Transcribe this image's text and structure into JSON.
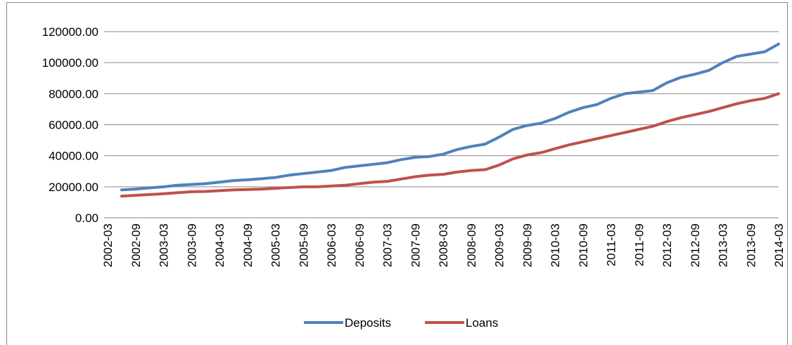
{
  "chart_data": {
    "type": "line",
    "categories": [
      "2002-03",
      null,
      "2002-09",
      null,
      "2003-03",
      null,
      "2003-09",
      null,
      "2004-03",
      null,
      "2004-09",
      null,
      "2005-03",
      null,
      "2005-09",
      null,
      "2006-03",
      null,
      "2006-09",
      null,
      "2007-03",
      null,
      "2007-09",
      null,
      "2008-03",
      null,
      "2008-09",
      null,
      "2009-03",
      null,
      "2009-09",
      null,
      "2010-03",
      null,
      "2010-09",
      null,
      "2011-03",
      null,
      "2011-09",
      null,
      "2012-03",
      null,
      "2012-09",
      null,
      "2013-03",
      null,
      "2013-09",
      null,
      "2014-03"
    ],
    "series": [
      {
        "name": "Deposits",
        "color": "#4f81bd",
        "values": [
          null,
          18000,
          18500,
          19300,
          20000,
          21000,
          21500,
          22000,
          23000,
          24000,
          24500,
          25200,
          26000,
          27500,
          28500,
          29500,
          30500,
          32500,
          33500,
          34500,
          35500,
          37500,
          39000,
          39500,
          41000,
          44000,
          46000,
          47500,
          52000,
          57000,
          59500,
          61000,
          64000,
          68000,
          71000,
          73000,
          77000,
          80000,
          81000,
          82000,
          87000,
          90500,
          92500,
          95000,
          100000,
          104000,
          105500,
          107000,
          112000
        ]
      },
      {
        "name": "Loans",
        "color": "#c0504d",
        "values": [
          null,
          14000,
          14500,
          15000,
          15500,
          16200,
          16800,
          17000,
          17500,
          18000,
          18200,
          18500,
          19000,
          19500,
          20000,
          20000,
          20500,
          21000,
          22000,
          23000,
          23500,
          25000,
          26500,
          27500,
          28000,
          29500,
          30500,
          31000,
          34000,
          38000,
          40500,
          42000,
          44500,
          47000,
          49000,
          51000,
          53000,
          55000,
          57000,
          59000,
          62000,
          64500,
          66500,
          68500,
          71000,
          73500,
          75500,
          77000,
          80000
        ]
      }
    ],
    "ylim": [
      0,
      120000
    ],
    "yticks": [
      {
        "value": 0,
        "label": "0.00"
      },
      {
        "value": 20000,
        "label": "20000.00"
      },
      {
        "value": 40000,
        "label": "40000.00"
      },
      {
        "value": 60000,
        "label": "60000.00"
      },
      {
        "value": 80000,
        "label": "80000.00"
      },
      {
        "value": 100000,
        "label": "100000.00"
      },
      {
        "value": 120000,
        "label": "120000.00"
      }
    ],
    "grid": true,
    "legend": "bottom"
  }
}
